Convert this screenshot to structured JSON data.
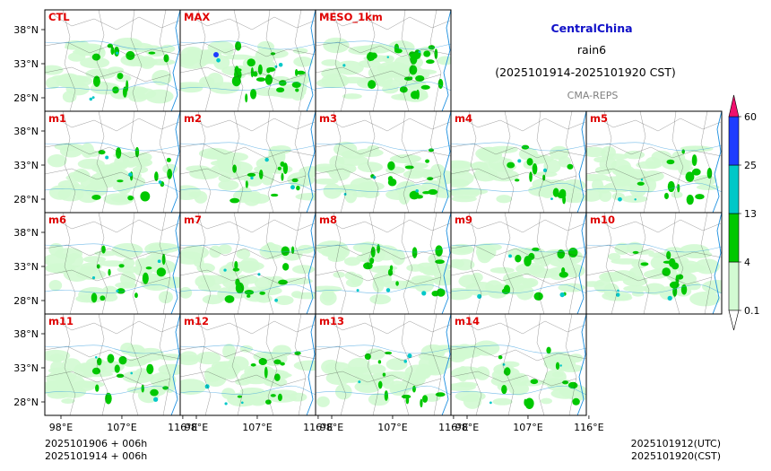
{
  "header": {
    "region": "CentralChina",
    "variable": "rain6",
    "period": "(2025101914-2025101920 CST)",
    "system": "CMA-REPS"
  },
  "footer": {
    "init_utc": "2025101906  +  006h",
    "init_cst": "2025101914  +  006h",
    "valid_utc": "2025101912(UTC)",
    "valid_cst": "2025101920(CST)"
  },
  "colors": {
    "title_blue": "#1010c8",
    "panel_label_red": "#e00000",
    "system_gray": "#808080"
  },
  "chart_data": {
    "type": "heatmap",
    "panels": [
      [
        "CTL",
        "MAX",
        "MESO_1km"
      ],
      [
        "m1",
        "m2",
        "m3",
        "m4",
        "m5"
      ],
      [
        "m6",
        "m7",
        "m8",
        "m9",
        "m10"
      ],
      [
        "m11",
        "m12",
        "m13",
        "m14"
      ]
    ],
    "x_ticks": [
      "98°E",
      "107°E",
      "116°E"
    ],
    "y_ticks": [
      "38°N",
      "33°N",
      "28°N"
    ],
    "colorbar": {
      "levels": [
        "0.1",
        "4",
        "13",
        "25",
        "60"
      ],
      "colors": [
        "#d2fad2",
        "#00c800",
        "#00c8c8",
        "#1e3cff"
      ],
      "under_color": "#ffffff",
      "over_color": "#f0106e"
    }
  }
}
